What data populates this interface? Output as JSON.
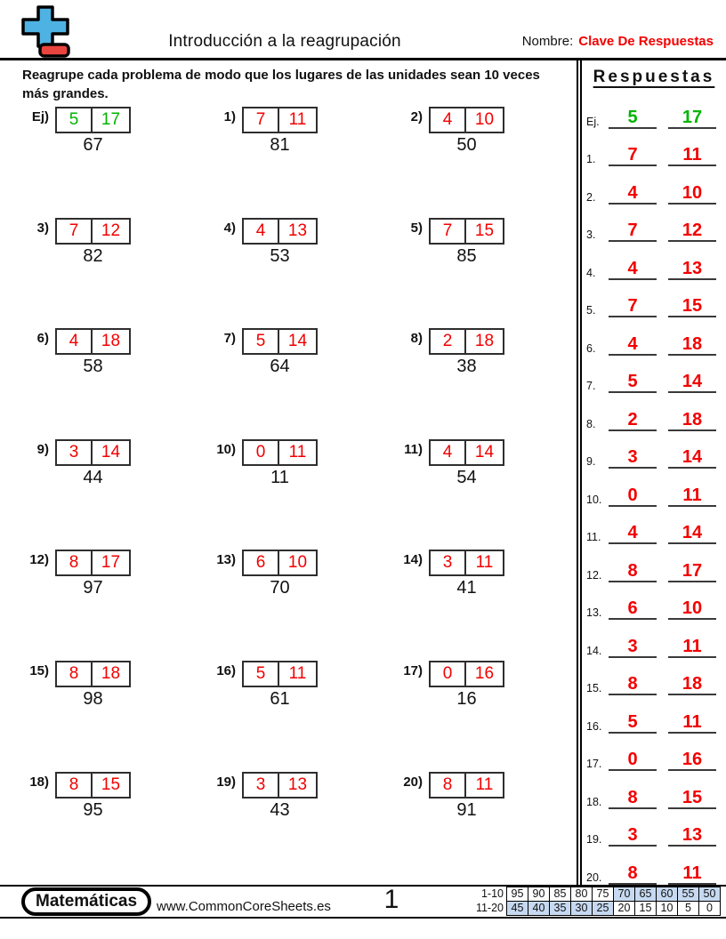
{
  "colors": {
    "answer_red": "#f20000",
    "example_green": "#00b400",
    "score_highlight": "#c6d9f1",
    "logo_blue": "#4eb3e3",
    "logo_red": "#e9453e"
  },
  "header": {
    "title": "Introducción a la reagrupación",
    "name_label": "Nombre:",
    "name_value": "Clave De Respuestas"
  },
  "instructions": "Reagrupe cada problema de modo que los lugares de las unidades sean 10 veces más grandes.",
  "problems": [
    {
      "label": "Ej)",
      "tens": "5",
      "ones": "17",
      "value": "67",
      "example": true
    },
    {
      "label": "1)",
      "tens": "7",
      "ones": "11",
      "value": "81"
    },
    {
      "label": "2)",
      "tens": "4",
      "ones": "10",
      "value": "50"
    },
    {
      "label": "3)",
      "tens": "7",
      "ones": "12",
      "value": "82"
    },
    {
      "label": "4)",
      "tens": "4",
      "ones": "13",
      "value": "53"
    },
    {
      "label": "5)",
      "tens": "7",
      "ones": "15",
      "value": "85"
    },
    {
      "label": "6)",
      "tens": "4",
      "ones": "18",
      "value": "58"
    },
    {
      "label": "7)",
      "tens": "5",
      "ones": "14",
      "value": "64"
    },
    {
      "label": "8)",
      "tens": "2",
      "ones": "18",
      "value": "38"
    },
    {
      "label": "9)",
      "tens": "3",
      "ones": "14",
      "value": "44"
    },
    {
      "label": "10)",
      "tens": "0",
      "ones": "11",
      "value": "11"
    },
    {
      "label": "11)",
      "tens": "4",
      "ones": "14",
      "value": "54"
    },
    {
      "label": "12)",
      "tens": "8",
      "ones": "17",
      "value": "97"
    },
    {
      "label": "13)",
      "tens": "6",
      "ones": "10",
      "value": "70"
    },
    {
      "label": "14)",
      "tens": "3",
      "ones": "11",
      "value": "41"
    },
    {
      "label": "15)",
      "tens": "8",
      "ones": "18",
      "value": "98"
    },
    {
      "label": "16)",
      "tens": "5",
      "ones": "11",
      "value": "61"
    },
    {
      "label": "17)",
      "tens": "0",
      "ones": "16",
      "value": "16"
    },
    {
      "label": "18)",
      "tens": "8",
      "ones": "15",
      "value": "95"
    },
    {
      "label": "19)",
      "tens": "3",
      "ones": "13",
      "value": "43"
    },
    {
      "label": "20)",
      "tens": "8",
      "ones": "11",
      "value": "91"
    }
  ],
  "answers": {
    "title": "Respuestas",
    "items": [
      {
        "label": "Ej.",
        "tens": "5",
        "ones": "17",
        "example": true
      },
      {
        "label": "1.",
        "tens": "7",
        "ones": "11"
      },
      {
        "label": "2.",
        "tens": "4",
        "ones": "10"
      },
      {
        "label": "3.",
        "tens": "7",
        "ones": "12"
      },
      {
        "label": "4.",
        "tens": "4",
        "ones": "13"
      },
      {
        "label": "5.",
        "tens": "7",
        "ones": "15"
      },
      {
        "label": "6.",
        "tens": "4",
        "ones": "18"
      },
      {
        "label": "7.",
        "tens": "5",
        "ones": "14"
      },
      {
        "label": "8.",
        "tens": "2",
        "ones": "18"
      },
      {
        "label": "9.",
        "tens": "3",
        "ones": "14"
      },
      {
        "label": "10.",
        "tens": "0",
        "ones": "11"
      },
      {
        "label": "11.",
        "tens": "4",
        "ones": "14"
      },
      {
        "label": "12.",
        "tens": "8",
        "ones": "17"
      },
      {
        "label": "13.",
        "tens": "6",
        "ones": "10"
      },
      {
        "label": "14.",
        "tens": "3",
        "ones": "11"
      },
      {
        "label": "15.",
        "tens": "8",
        "ones": "18"
      },
      {
        "label": "16.",
        "tens": "5",
        "ones": "11"
      },
      {
        "label": "17.",
        "tens": "0",
        "ones": "16"
      },
      {
        "label": "18.",
        "tens": "8",
        "ones": "15"
      },
      {
        "label": "19.",
        "tens": "3",
        "ones": "13"
      },
      {
        "label": "20.",
        "tens": "8",
        "ones": "11"
      }
    ]
  },
  "footer": {
    "brand": "Matemáticas",
    "website": "www.CommonCoreSheets.es",
    "page_number": "1",
    "score_rows": [
      {
        "label": "1-10",
        "cells": [
          {
            "v": "95",
            "hl": false
          },
          {
            "v": "90",
            "hl": false
          },
          {
            "v": "85",
            "hl": false
          },
          {
            "v": "80",
            "hl": false
          },
          {
            "v": "75",
            "hl": false
          },
          {
            "v": "70",
            "hl": true
          },
          {
            "v": "65",
            "hl": true
          },
          {
            "v": "60",
            "hl": true
          },
          {
            "v": "55",
            "hl": true
          },
          {
            "v": "50",
            "hl": true
          }
        ]
      },
      {
        "label": "11-20",
        "cells": [
          {
            "v": "45",
            "hl": true
          },
          {
            "v": "40",
            "hl": true
          },
          {
            "v": "35",
            "hl": true
          },
          {
            "v": "30",
            "hl": true
          },
          {
            "v": "25",
            "hl": true
          },
          {
            "v": "20",
            "hl": false
          },
          {
            "v": "15",
            "hl": false
          },
          {
            "v": "10",
            "hl": false
          },
          {
            "v": "5",
            "hl": false
          },
          {
            "v": "0",
            "hl": false
          }
        ]
      }
    ]
  }
}
